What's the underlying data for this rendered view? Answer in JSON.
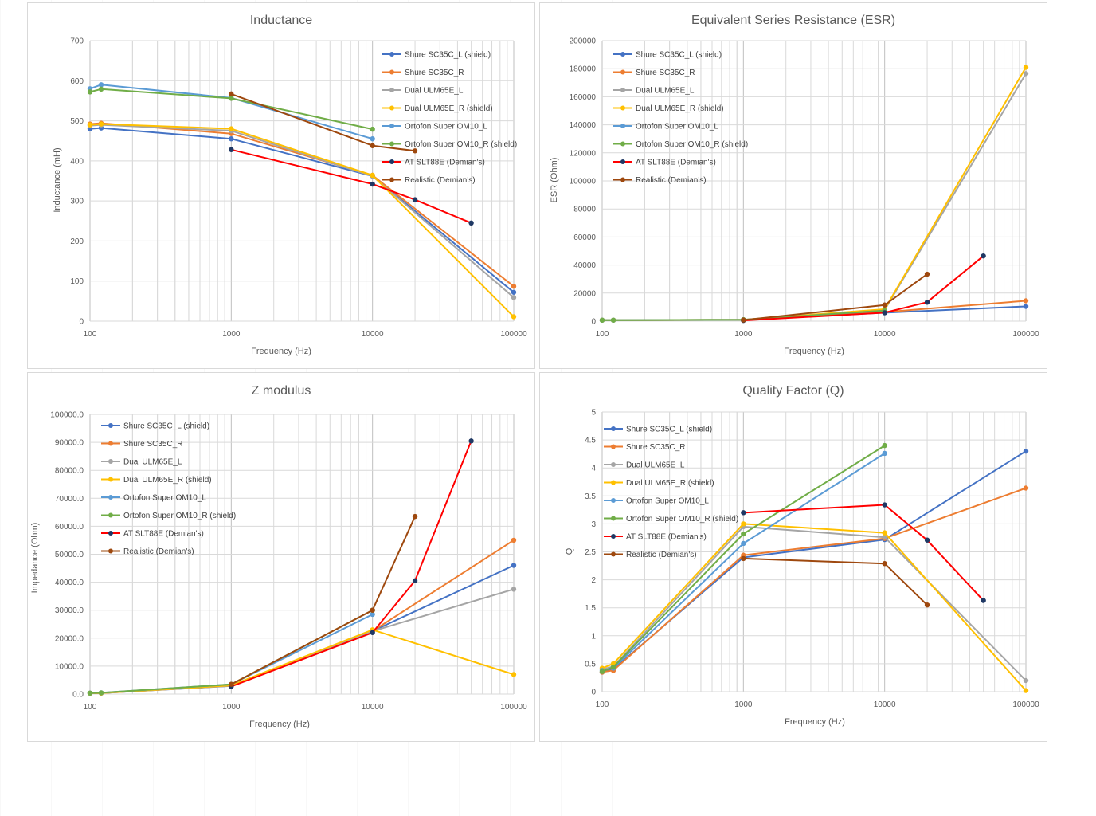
{
  "series_styles": [
    {
      "name": "Shure SC35C_L (shield)",
      "color": "#4472C4"
    },
    {
      "name": "Shure SC35C_R",
      "color": "#ED7D31"
    },
    {
      "name": "Dual ULM65E_L",
      "color": "#A5A5A5"
    },
    {
      "name": "Dual ULM65E_R (shield)",
      "color": "#FFC000"
    },
    {
      "name": "Ortofon Super OM10_L",
      "color": "#5B9BD5"
    },
    {
      "name": "Ortofon Super OM10_R (shield)",
      "color": "#70AD47"
    },
    {
      "name": "AT SLT88E (Demian's)",
      "color": "#FF0000",
      "marker": "#1F3864"
    },
    {
      "name": "Realistic (Demian's)",
      "color": "#9E480E"
    }
  ],
  "chart_data": [
    {
      "type": "line",
      "title": "Inductance",
      "xlabel": "Frequency (Hz)",
      "ylabel": "Inductance (mH)",
      "xscale": "log",
      "xlim": [
        100,
        100000
      ],
      "ylim": [
        0,
        700
      ],
      "xticks": [
        "100",
        "1000",
        "10000",
        "100000"
      ],
      "yticks": [
        "0",
        "100",
        "200",
        "300",
        "400",
        "500",
        "600",
        "700"
      ],
      "grid": true,
      "legend": "top-right",
      "series": [
        {
          "name": "Shure SC35C_L (shield)",
          "x": [
            100,
            120,
            1000,
            10000,
            100000
          ],
          "y": [
            480,
            482,
            455,
            362,
            72
          ]
        },
        {
          "name": "Shure SC35C_R",
          "x": [
            100,
            120,
            1000,
            10000,
            100000
          ],
          "y": [
            492,
            494,
            468,
            364,
            87
          ]
        },
        {
          "name": "Dual ULM65E_L",
          "x": [
            100,
            120,
            1000,
            10000,
            100000
          ],
          "y": [
            488,
            490,
            475,
            362,
            59
          ]
        },
        {
          "name": "Dual ULM65E_R (shield)",
          "x": [
            100,
            120,
            1000,
            10000,
            100000
          ],
          "y": [
            490,
            492,
            480,
            364,
            11
          ]
        },
        {
          "name": "Ortofon Super OM10_L",
          "x": [
            100,
            120,
            1000,
            10000
          ],
          "y": [
            580,
            590,
            557,
            455
          ]
        },
        {
          "name": "Ortofon Super OM10_R (shield)",
          "x": [
            100,
            120,
            1000,
            10000
          ],
          "y": [
            572,
            579,
            556,
            479
          ]
        },
        {
          "name": "AT SLT88E (Demian's)",
          "x": [
            1000,
            10000,
            20000,
            50000
          ],
          "y": [
            428,
            342,
            303,
            245
          ]
        },
        {
          "name": "Realistic (Demian's)",
          "x": [
            1000,
            10000,
            20000
          ],
          "y": [
            567,
            438,
            425
          ]
        }
      ]
    },
    {
      "type": "line",
      "title": "Equivalent Series Resistance (ESR)",
      "xlabel": "Frequency (Hz)",
      "ylabel": "ESR (Ohm)",
      "xscale": "log",
      "xlim": [
        100,
        100000
      ],
      "ylim": [
        0,
        200000
      ],
      "xticks": [
        "100",
        "1000",
        "10000",
        "100000"
      ],
      "yticks": [
        "0",
        "20000",
        "40000",
        "60000",
        "80000",
        "100000",
        "120000",
        "140000",
        "160000",
        "180000",
        "200000"
      ],
      "grid": true,
      "legend": "top-left",
      "series": [
        {
          "name": "Shure SC35C_L (shield)",
          "x": [
            100,
            120,
            1000,
            10000,
            100000
          ],
          "y": [
            700,
            700,
            900,
            6000,
            10500
          ]
        },
        {
          "name": "Shure SC35C_R",
          "x": [
            100,
            120,
            1000,
            10000,
            100000
          ],
          "y": [
            700,
            700,
            900,
            6500,
            14500
          ]
        },
        {
          "name": "Dual ULM65E_L",
          "x": [
            100,
            120,
            1000,
            10000,
            100000
          ],
          "y": [
            700,
            700,
            1000,
            8000,
            176500
          ]
        },
        {
          "name": "Dual ULM65E_R (shield)",
          "x": [
            100,
            120,
            1000,
            10000,
            100000
          ],
          "y": [
            700,
            700,
            1000,
            8500,
            181000
          ]
        },
        {
          "name": "Ortofon Super OM10_L",
          "x": [
            100,
            120,
            1000,
            10000
          ],
          "y": [
            700,
            700,
            1000,
            7500
          ]
        },
        {
          "name": "Ortofon Super OM10_R (shield)",
          "x": [
            100,
            120,
            1000,
            10000
          ],
          "y": [
            700,
            700,
            1000,
            7500
          ]
        },
        {
          "name": "AT SLT88E (Demian's)",
          "x": [
            1000,
            10000,
            20000,
            50000
          ],
          "y": [
            500,
            6000,
            13500,
            46500
          ]
        },
        {
          "name": "Realistic (Demian's)",
          "x": [
            1000,
            10000,
            20000
          ],
          "y": [
            800,
            11500,
            33500
          ]
        }
      ]
    },
    {
      "type": "line",
      "title": "Z modulus",
      "xlabel": "Frequency (Hz)",
      "ylabel": "Impedance (Ohm)",
      "xscale": "log",
      "xlim": [
        100,
        100000
      ],
      "ylim": [
        0,
        100000
      ],
      "xticks": [
        "100",
        "1000",
        "10000",
        "100000"
      ],
      "yticks": [
        "0.0",
        "10000.0",
        "20000.0",
        "30000.0",
        "40000.0",
        "50000.0",
        "60000.0",
        "70000.0",
        "80000.0",
        "90000.0",
        "100000.0"
      ],
      "grid": true,
      "legend": "top-left",
      "series": [
        {
          "name": "Shure SC35C_L (shield)",
          "x": [
            100,
            120,
            1000,
            10000,
            100000
          ],
          "y": [
            300,
            350,
            2900,
            22500,
            46000
          ]
        },
        {
          "name": "Shure SC35C_R",
          "x": [
            100,
            120,
            1000,
            10000,
            100000
          ],
          "y": [
            300,
            350,
            3000,
            22500,
            55000
          ]
        },
        {
          "name": "Dual ULM65E_L",
          "x": [
            100,
            120,
            1000,
            10000,
            100000
          ],
          "y": [
            300,
            350,
            3000,
            22500,
            37500
          ]
        },
        {
          "name": "Dual ULM65E_R (shield)",
          "x": [
            100,
            120,
            1000,
            10000,
            100000
          ],
          "y": [
            300,
            350,
            3100,
            23000,
            7000
          ]
        },
        {
          "name": "Ortofon Super OM10_L",
          "x": [
            100,
            120,
            1000,
            10000
          ],
          "y": [
            350,
            450,
            3500,
            28500
          ]
        },
        {
          "name": "Ortofon Super OM10_R (shield)",
          "x": [
            100,
            120,
            1000,
            10000
          ],
          "y": [
            350,
            450,
            3500,
            30000
          ]
        },
        {
          "name": "AT SLT88E (Demian's)",
          "x": [
            1000,
            10000,
            20000,
            50000
          ],
          "y": [
            2700,
            22000,
            40500,
            90500
          ]
        },
        {
          "name": "Realistic (Demian's)",
          "x": [
            1000,
            10000,
            20000
          ],
          "y": [
            3500,
            30000,
            63500
          ]
        }
      ]
    },
    {
      "type": "line",
      "title": "Quality Factor (Q)",
      "xlabel": "Frequency (Hz)",
      "ylabel": "Q",
      "xscale": "log",
      "xlim": [
        100,
        100000
      ],
      "ylim": [
        0,
        5
      ],
      "xticks": [
        "100",
        "1000",
        "10000",
        "100000"
      ],
      "yticks": [
        "0",
        "0.5",
        "1",
        "1.5",
        "2",
        "2.5",
        "3",
        "3.5",
        "4",
        "4.5",
        "5"
      ],
      "grid": true,
      "legend": "top-left",
      "series": [
        {
          "name": "Shure SC35C_L (shield)",
          "x": [
            100,
            120,
            1000,
            10000,
            100000
          ],
          "y": [
            0.35,
            0.4,
            2.4,
            2.72,
            4.3
          ]
        },
        {
          "name": "Shure SC35C_R",
          "x": [
            100,
            120,
            1000,
            10000,
            100000
          ],
          "y": [
            0.35,
            0.38,
            2.44,
            2.74,
            3.64
          ]
        },
        {
          "name": "Dual ULM65E_L",
          "x": [
            100,
            120,
            1000,
            10000,
            100000
          ],
          "y": [
            0.4,
            0.45,
            2.95,
            2.76,
            0.2
          ]
        },
        {
          "name": "Dual ULM65E_R (shield)",
          "x": [
            100,
            120,
            1000,
            10000,
            100000
          ],
          "y": [
            0.42,
            0.5,
            3.0,
            2.84,
            0.02
          ]
        },
        {
          "name": "Ortofon Super OM10_L",
          "x": [
            100,
            120,
            1000,
            10000
          ],
          "y": [
            0.38,
            0.42,
            2.65,
            4.26
          ]
        },
        {
          "name": "Ortofon Super OM10_R (shield)",
          "x": [
            100,
            120,
            1000,
            10000
          ],
          "y": [
            0.36,
            0.44,
            2.82,
            4.4
          ]
        },
        {
          "name": "AT SLT88E (Demian's)",
          "x": [
            1000,
            10000,
            20000,
            50000
          ],
          "y": [
            3.2,
            3.34,
            2.71,
            1.63
          ]
        },
        {
          "name": "Realistic (Demian's)",
          "x": [
            1000,
            10000,
            20000
          ],
          "y": [
            2.38,
            2.29,
            1.55
          ]
        }
      ]
    }
  ]
}
